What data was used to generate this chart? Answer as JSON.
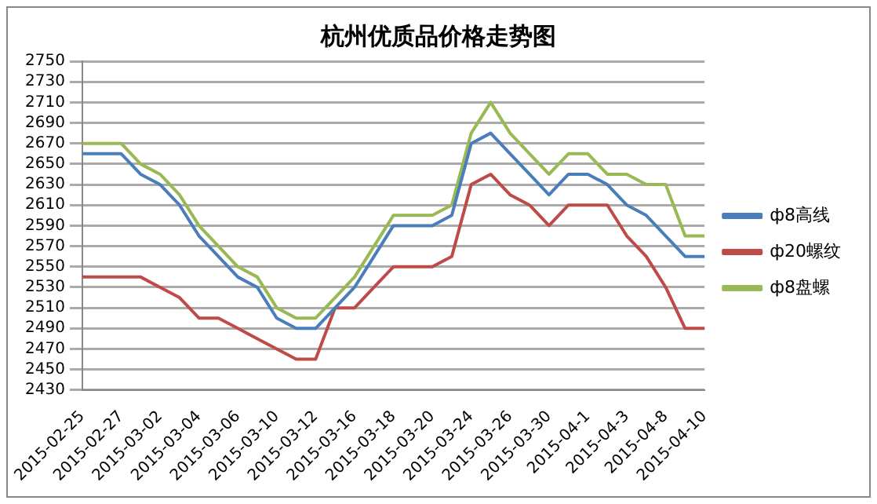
{
  "chart_data": {
    "type": "line",
    "title": "杭州优质品价格走势图",
    "categories": [
      "2015-02-25",
      null,
      "2015-02-27",
      null,
      "2015-03-02",
      null,
      "2015-03-04",
      null,
      "2015-03-06",
      null,
      "2015-03-10",
      null,
      "2015-03-12",
      null,
      "2015-03-16",
      null,
      "2015-03-18",
      null,
      "2015-03-20",
      null,
      "2015-03-24",
      null,
      "2015-03-26",
      null,
      "2015-03-30",
      null,
      "2015-04-1",
      null,
      "2015-04-3",
      null,
      "2015-04-8",
      null,
      "2015-04-10"
    ],
    "series": [
      {
        "name": "ф8高线",
        "color": "#4a7ebb",
        "values": [
          2660,
          2660,
          2660,
          2640,
          2630,
          2610,
          2580,
          2560,
          2540,
          2530,
          2500,
          2490,
          2490,
          2510,
          2530,
          2560,
          2590,
          2590,
          2590,
          2600,
          2670,
          2680,
          2660,
          2640,
          2620,
          2640,
          2640,
          2630,
          2610,
          2600,
          2580,
          2560,
          2560
        ]
      },
      {
        "name": "ф20螺纹",
        "color": "#be4b48",
        "values": [
          2540,
          2540,
          2540,
          2540,
          2530,
          2520,
          2500,
          2500,
          2490,
          2480,
          2470,
          2460,
          2460,
          2510,
          2510,
          2530,
          2550,
          2550,
          2550,
          2560,
          2630,
          2640,
          2620,
          2610,
          2590,
          2610,
          2610,
          2610,
          2580,
          2560,
          2530,
          2490,
          2490
        ]
      },
      {
        "name": "ф8盘螺",
        "color": "#98b954",
        "values": [
          2670,
          2670,
          2670,
          2650,
          2640,
          2620,
          2590,
          2570,
          2550,
          2540,
          2510,
          2500,
          2500,
          2520,
          2540,
          2570,
          2600,
          2600,
          2600,
          2610,
          2680,
          2710,
          2680,
          2660,
          2640,
          2660,
          2660,
          2640,
          2640,
          2630,
          2630,
          2580,
          2580
        ]
      }
    ],
    "ylim": [
      2430,
      2750
    ],
    "yticks": [
      2430,
      2450,
      2470,
      2490,
      2510,
      2530,
      2550,
      2570,
      2590,
      2610,
      2630,
      2650,
      2670,
      2690,
      2710,
      2730,
      2750
    ],
    "grid": "y",
    "legend": "right",
    "marker": "none",
    "line_style": "solid"
  }
}
